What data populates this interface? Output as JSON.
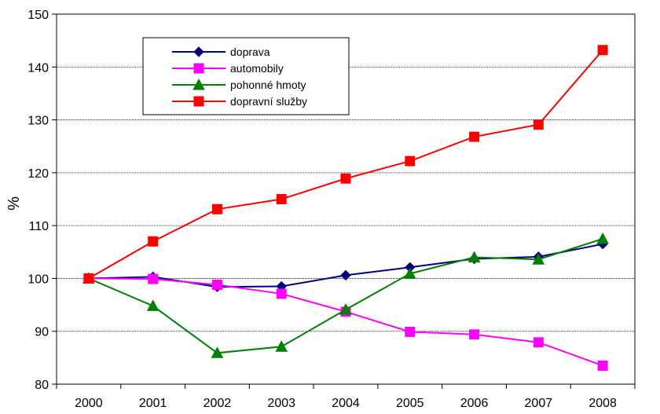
{
  "chart_data": {
    "type": "line",
    "title": "",
    "xlabel": "",
    "ylabel": "%",
    "ylim": [
      80,
      150
    ],
    "yticks": [
      80,
      90,
      100,
      110,
      120,
      130,
      140,
      150
    ],
    "categories": [
      "2000",
      "2001",
      "2002",
      "2003",
      "2004",
      "2005",
      "2006",
      "2007",
      "2008"
    ],
    "grid": "horizontal dotted",
    "legend_position": "top-left (inside plot)",
    "series": [
      {
        "name": "doprava",
        "color": "#000080",
        "marker": "diamond",
        "values": [
          100,
          100.3,
          98.4,
          98.5,
          100.6,
          102.1,
          103.7,
          104.1,
          106.5
        ]
      },
      {
        "name": "automobily",
        "color": "#ff00ff",
        "marker": "square",
        "values": [
          100,
          99.9,
          98.8,
          97.1,
          93.7,
          89.9,
          89.4,
          87.9,
          83.5
        ]
      },
      {
        "name": "pohonné hmoty",
        "color": "#008000",
        "marker": "triangle",
        "values": [
          100,
          94.8,
          85.9,
          87.1,
          94.1,
          100.9,
          104,
          103.6,
          107.5
        ]
      },
      {
        "name": "dopravní služby",
        "color": "#ff0000",
        "marker": "square",
        "values": [
          100,
          107,
          113.1,
          115,
          118.9,
          122.2,
          126.8,
          129.1,
          143.2
        ]
      }
    ]
  }
}
